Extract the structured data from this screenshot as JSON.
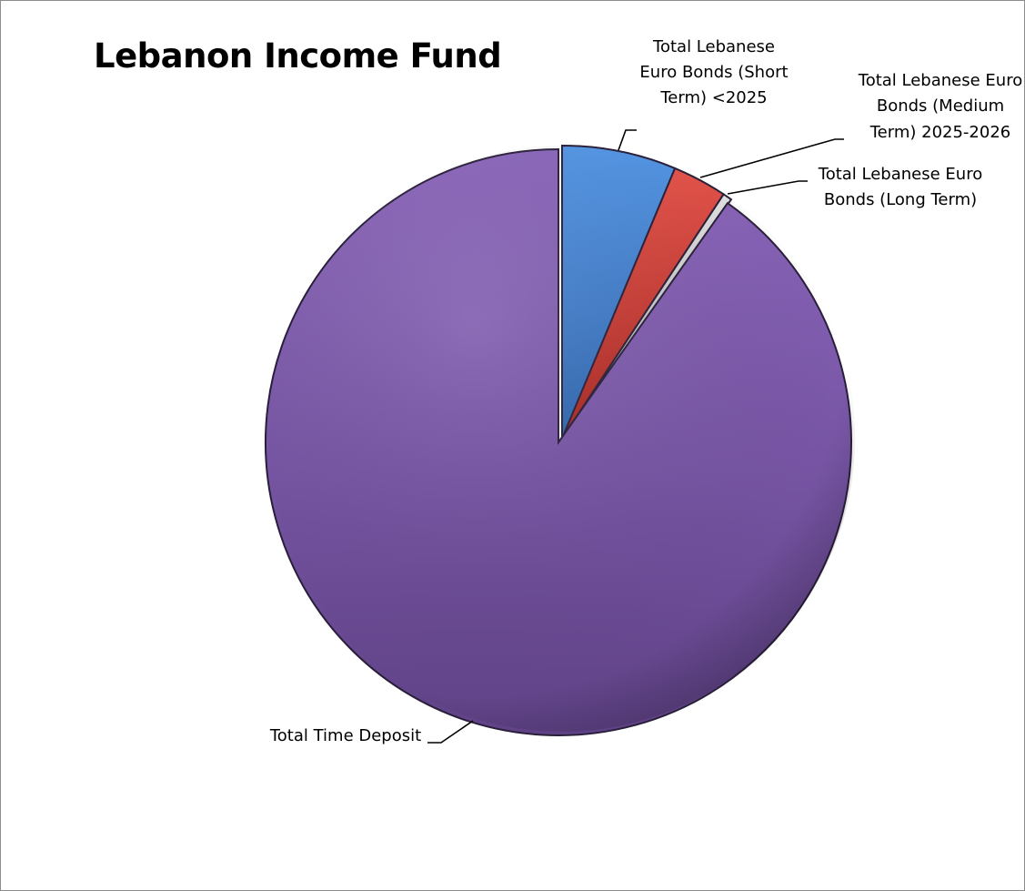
{
  "chart_data": {
    "type": "pie",
    "title": "Lebanon Income Fund",
    "slices": [
      {
        "label": "Total Lebanese Euro Bonds (Short Term) <2025",
        "label_lines": [
          "Total Lebanese",
          "Euro Bonds (Short",
          "Term) <2025"
        ],
        "value": 6.3,
        "color": "#4a86d4"
      },
      {
        "label": "Total Lebanese Euro Bonds (Medium Term) 2025-2026",
        "label_lines": [
          "Total Lebanese Euro",
          "Bonds (Medium",
          "Term) 2025-2026"
        ],
        "value": 3.0,
        "color": "#d9433c"
      },
      {
        "label": "Total Lebanese Euro Bonds (Long Term)",
        "label_lines": [
          "Total Lebanese Euro",
          "Bonds (Long Term)"
        ],
        "value": 0.5,
        "color": "#c9c9c9"
      },
      {
        "label": "Total Time Deposit",
        "label_lines": [
          "Total Time Deposit"
        ],
        "value": 90.2,
        "color": "#7b59a8"
      }
    ],
    "legend": "none",
    "data_labels": "category names with leader lines"
  }
}
